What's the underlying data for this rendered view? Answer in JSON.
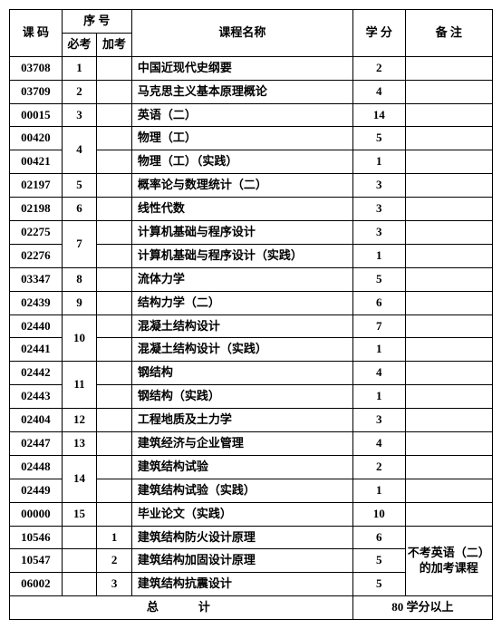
{
  "headers": {
    "code": "课 码",
    "seq_group": "序 号",
    "seq_required": "必考",
    "seq_additional": "加考",
    "name": "课程名称",
    "credit": "学 分",
    "remark": "备 注"
  },
  "rows": [
    {
      "code": "03708",
      "req": "1",
      "add": "",
      "name": "中国近现代史纲要",
      "credit": "2",
      "remark": ""
    },
    {
      "code": "03709",
      "req": "2",
      "add": "",
      "name": "马克思主义基本原理概论",
      "credit": "4",
      "remark": ""
    },
    {
      "code": "00015",
      "req": "3",
      "add": "",
      "name": "英语（二）",
      "credit": "14",
      "remark": ""
    },
    {
      "code": "00420",
      "req": "4",
      "req_span": 2,
      "add": "",
      "name": "物理（工）",
      "credit": "5",
      "remark": ""
    },
    {
      "code": "00421",
      "add": "",
      "name": "物理（工）（实践）",
      "credit": "1",
      "remark": ""
    },
    {
      "code": "02197",
      "req": "5",
      "add": "",
      "name": "概率论与数理统计（二）",
      "credit": "3",
      "remark": ""
    },
    {
      "code": "02198",
      "req": "6",
      "add": "",
      "name": "线性代数",
      "credit": "3",
      "remark": ""
    },
    {
      "code": "02275",
      "req": "7",
      "req_span": 2,
      "add": "",
      "name": "计算机基础与程序设计",
      "credit": "3",
      "remark": ""
    },
    {
      "code": "02276",
      "add": "",
      "name": "计算机基础与程序设计（实践）",
      "credit": "1",
      "remark": ""
    },
    {
      "code": "03347",
      "req": "8",
      "add": "",
      "name": "流体力学",
      "credit": "5",
      "remark": ""
    },
    {
      "code": "02439",
      "req": "9",
      "add": "",
      "name": "结构力学（二）",
      "credit": "6",
      "remark": ""
    },
    {
      "code": "02440",
      "req": "10",
      "req_span": 2,
      "add": "",
      "name": "混凝土结构设计",
      "credit": "7",
      "remark": ""
    },
    {
      "code": "02441",
      "add": "",
      "name": "混凝土结构设计（实践）",
      "credit": "1",
      "remark": ""
    },
    {
      "code": "02442",
      "req": "11",
      "req_span": 2,
      "add": "",
      "name": "钢结构",
      "credit": "4",
      "remark": ""
    },
    {
      "code": "02443",
      "add": "",
      "name": "钢结构（实践）",
      "credit": "1",
      "remark": ""
    },
    {
      "code": "02404",
      "req": "12",
      "add": "",
      "name": "工程地质及土力学",
      "credit": "3",
      "remark": ""
    },
    {
      "code": "02447",
      "req": "13",
      "add": "",
      "name": "建筑经济与企业管理",
      "credit": "4",
      "remark": ""
    },
    {
      "code": "02448",
      "req": "14",
      "req_span": 2,
      "add": "",
      "name": "建筑结构试验",
      "credit": "2",
      "remark": ""
    },
    {
      "code": "02449",
      "add": "",
      "name": "建筑结构试验（实践）",
      "credit": "1",
      "remark": ""
    },
    {
      "code": "00000",
      "req": "15",
      "add": "",
      "name": "毕业论文（实践）",
      "credit": "10",
      "remark": ""
    },
    {
      "code": "10546",
      "req": "",
      "add": "1",
      "name": "建筑结构防火设计原理",
      "credit": "6",
      "remark": "不考英语（二）的加考课程",
      "remark_span": 3
    },
    {
      "code": "10547",
      "req": "",
      "add": "2",
      "name": "建筑结构加固设计原理",
      "credit": "5"
    },
    {
      "code": "06002",
      "req": "",
      "add": "3",
      "name": "建筑结构抗震设计",
      "credit": "5"
    }
  ],
  "footer": {
    "total_label": "总　　计",
    "total_value": "80 学分以上"
  }
}
